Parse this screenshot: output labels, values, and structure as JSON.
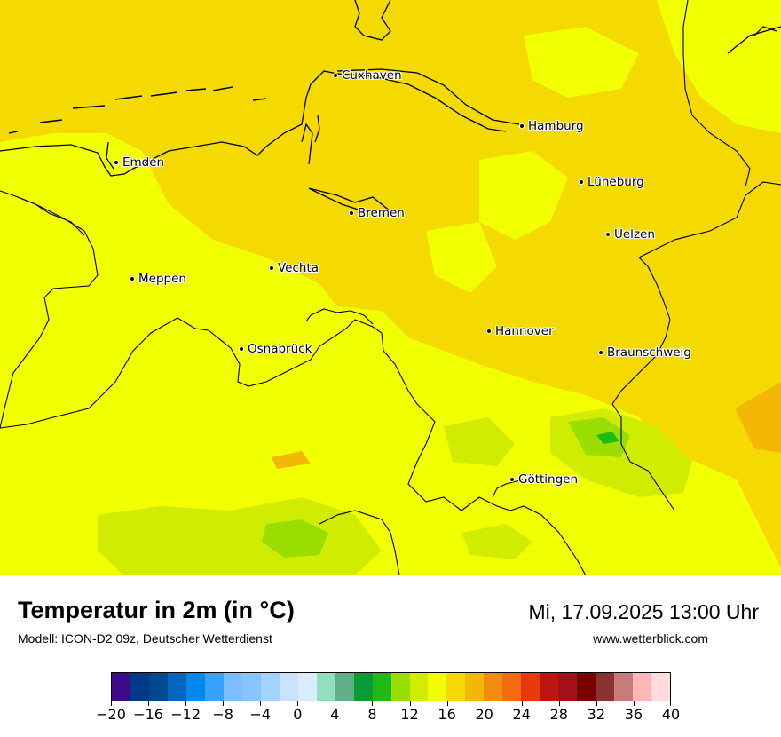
{
  "title": "Temperatur in 2m (in °C)",
  "model": "Modell: ICON-D2 09z, Deutscher Wetterdienst",
  "datetime": "Mi, 17.09.2025 13:00 Uhr",
  "website": "www.wetterblick.com",
  "cities": [
    {
      "name": "Cuxhaven"
    },
    {
      "name": "Hamburg"
    },
    {
      "name": "Emden"
    },
    {
      "name": "Lüneburg"
    },
    {
      "name": "Bremen"
    },
    {
      "name": "Uelzen"
    },
    {
      "name": "Vechta"
    },
    {
      "name": "Meppen"
    },
    {
      "name": "Hannover"
    },
    {
      "name": "Osnabrück"
    },
    {
      "name": "Braunschweig"
    },
    {
      "name": "Göttingen"
    }
  ],
  "colorbar": {
    "min": -20,
    "max": 40,
    "step": 2,
    "tick_labels": [
      "−20",
      "−16",
      "−12",
      "−8",
      "−4",
      "0",
      "4",
      "8",
      "12",
      "16",
      "20",
      "24",
      "28",
      "32",
      "36",
      "40"
    ],
    "colors": [
      "#3d0a8c",
      "#003a86",
      "#004a8d",
      "#0066bf",
      "#0088ee",
      "#38a3ff",
      "#7cbcff",
      "#88c4ff",
      "#a6d2ff",
      "#c8e2ff",
      "#dbecff",
      "#93dec0",
      "#62ae87",
      "#0a9b34",
      "#1ebb16",
      "#9ade00",
      "#d0ec00",
      "#f2ff00",
      "#f4da00",
      "#f3b806",
      "#f18c0d",
      "#f26c0e",
      "#e9380c",
      "#bd1412",
      "#a3101a",
      "#7a0000",
      "#8a3333",
      "#c77b7b",
      "#ffb6b6",
      "#ffdddd"
    ]
  }
}
